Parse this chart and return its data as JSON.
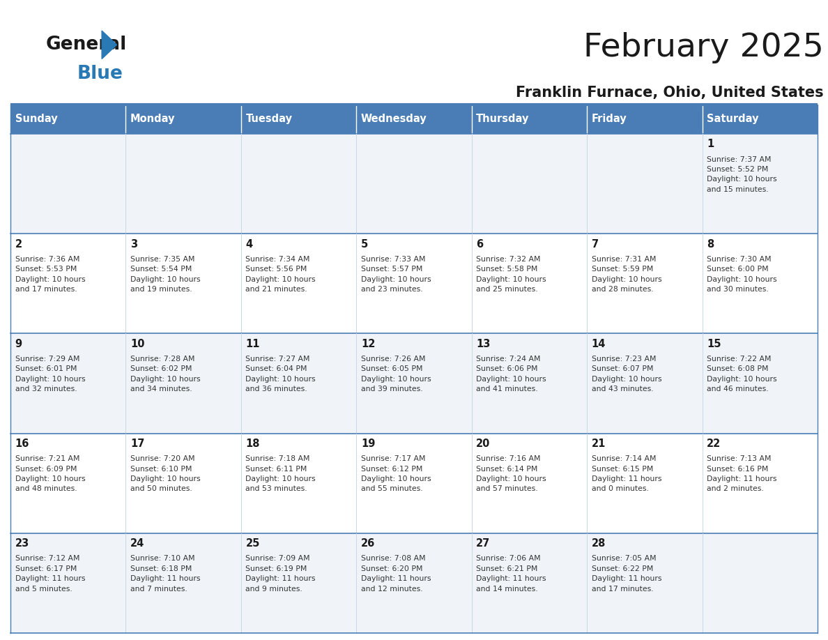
{
  "title": "February 2025",
  "subtitle": "Franklin Furnace, Ohio, United States",
  "days_of_week": [
    "Sunday",
    "Monday",
    "Tuesday",
    "Wednesday",
    "Thursday",
    "Friday",
    "Saturday"
  ],
  "header_bg": "#4a7db5",
  "header_text": "#ffffff",
  "row_bg_odd": "#f0f4f8",
  "row_bg_even": "#ffffff",
  "cell_border": "#4a7db5",
  "cell_border_light": "#c8d8e8",
  "day_number_color": "#1a1a1a",
  "info_text_color": "#333333",
  "title_color": "#1a1a1a",
  "subtitle_color": "#1a1a1a",
  "logo_general_color": "#1a1a1a",
  "logo_blue_color": "#2979b5",
  "bg_color": "#ffffff",
  "calendar_data": [
    [
      {
        "day": "",
        "info": ""
      },
      {
        "day": "",
        "info": ""
      },
      {
        "day": "",
        "info": ""
      },
      {
        "day": "",
        "info": ""
      },
      {
        "day": "",
        "info": ""
      },
      {
        "day": "",
        "info": ""
      },
      {
        "day": "1",
        "info": "Sunrise: 7:37 AM\nSunset: 5:52 PM\nDaylight: 10 hours\nand 15 minutes."
      }
    ],
    [
      {
        "day": "2",
        "info": "Sunrise: 7:36 AM\nSunset: 5:53 PM\nDaylight: 10 hours\nand 17 minutes."
      },
      {
        "day": "3",
        "info": "Sunrise: 7:35 AM\nSunset: 5:54 PM\nDaylight: 10 hours\nand 19 minutes."
      },
      {
        "day": "4",
        "info": "Sunrise: 7:34 AM\nSunset: 5:56 PM\nDaylight: 10 hours\nand 21 minutes."
      },
      {
        "day": "5",
        "info": "Sunrise: 7:33 AM\nSunset: 5:57 PM\nDaylight: 10 hours\nand 23 minutes."
      },
      {
        "day": "6",
        "info": "Sunrise: 7:32 AM\nSunset: 5:58 PM\nDaylight: 10 hours\nand 25 minutes."
      },
      {
        "day": "7",
        "info": "Sunrise: 7:31 AM\nSunset: 5:59 PM\nDaylight: 10 hours\nand 28 minutes."
      },
      {
        "day": "8",
        "info": "Sunrise: 7:30 AM\nSunset: 6:00 PM\nDaylight: 10 hours\nand 30 minutes."
      }
    ],
    [
      {
        "day": "9",
        "info": "Sunrise: 7:29 AM\nSunset: 6:01 PM\nDaylight: 10 hours\nand 32 minutes."
      },
      {
        "day": "10",
        "info": "Sunrise: 7:28 AM\nSunset: 6:02 PM\nDaylight: 10 hours\nand 34 minutes."
      },
      {
        "day": "11",
        "info": "Sunrise: 7:27 AM\nSunset: 6:04 PM\nDaylight: 10 hours\nand 36 minutes."
      },
      {
        "day": "12",
        "info": "Sunrise: 7:26 AM\nSunset: 6:05 PM\nDaylight: 10 hours\nand 39 minutes."
      },
      {
        "day": "13",
        "info": "Sunrise: 7:24 AM\nSunset: 6:06 PM\nDaylight: 10 hours\nand 41 minutes."
      },
      {
        "day": "14",
        "info": "Sunrise: 7:23 AM\nSunset: 6:07 PM\nDaylight: 10 hours\nand 43 minutes."
      },
      {
        "day": "15",
        "info": "Sunrise: 7:22 AM\nSunset: 6:08 PM\nDaylight: 10 hours\nand 46 minutes."
      }
    ],
    [
      {
        "day": "16",
        "info": "Sunrise: 7:21 AM\nSunset: 6:09 PM\nDaylight: 10 hours\nand 48 minutes."
      },
      {
        "day": "17",
        "info": "Sunrise: 7:20 AM\nSunset: 6:10 PM\nDaylight: 10 hours\nand 50 minutes."
      },
      {
        "day": "18",
        "info": "Sunrise: 7:18 AM\nSunset: 6:11 PM\nDaylight: 10 hours\nand 53 minutes."
      },
      {
        "day": "19",
        "info": "Sunrise: 7:17 AM\nSunset: 6:12 PM\nDaylight: 10 hours\nand 55 minutes."
      },
      {
        "day": "20",
        "info": "Sunrise: 7:16 AM\nSunset: 6:14 PM\nDaylight: 10 hours\nand 57 minutes."
      },
      {
        "day": "21",
        "info": "Sunrise: 7:14 AM\nSunset: 6:15 PM\nDaylight: 11 hours\nand 0 minutes."
      },
      {
        "day": "22",
        "info": "Sunrise: 7:13 AM\nSunset: 6:16 PM\nDaylight: 11 hours\nand 2 minutes."
      }
    ],
    [
      {
        "day": "23",
        "info": "Sunrise: 7:12 AM\nSunset: 6:17 PM\nDaylight: 11 hours\nand 5 minutes."
      },
      {
        "day": "24",
        "info": "Sunrise: 7:10 AM\nSunset: 6:18 PM\nDaylight: 11 hours\nand 7 minutes."
      },
      {
        "day": "25",
        "info": "Sunrise: 7:09 AM\nSunset: 6:19 PM\nDaylight: 11 hours\nand 9 minutes."
      },
      {
        "day": "26",
        "info": "Sunrise: 7:08 AM\nSunset: 6:20 PM\nDaylight: 11 hours\nand 12 minutes."
      },
      {
        "day": "27",
        "info": "Sunrise: 7:06 AM\nSunset: 6:21 PM\nDaylight: 11 hours\nand 14 minutes."
      },
      {
        "day": "28",
        "info": "Sunrise: 7:05 AM\nSunset: 6:22 PM\nDaylight: 11 hours\nand 17 minutes."
      },
      {
        "day": "",
        "info": ""
      }
    ]
  ],
  "fig_width": 11.88,
  "fig_height": 9.18,
  "dpi": 100
}
